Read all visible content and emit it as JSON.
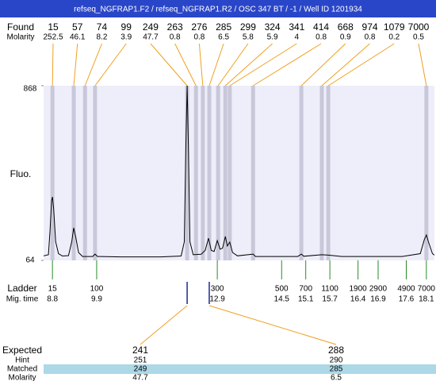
{
  "chart_data": {
    "type": "line",
    "title": "refseq_NGFRAP1.F2 / refseq_NGFRAP1.R2 / OSC 347 BT / -1 / Well ID 1201934",
    "y_label": "Fluo.",
    "ylim": [
      64,
      868
    ],
    "yticks": [
      868,
      64
    ],
    "xlim": [
      8.58,
      18.3
    ],
    "color": "#000000",
    "found": {
      "label": "Found",
      "molarity_label": "Molarity",
      "sizes": [
        15,
        57,
        74,
        99,
        249,
        263,
        276,
        285,
        299,
        324,
        341,
        414,
        668,
        974,
        1079,
        7000
      ],
      "molarities": [
        252.5,
        46.1,
        8.2,
        3.9,
        47.7,
        0.8,
        0.8,
        6.5,
        5.8,
        5.9,
        4,
        0.8,
        0.9,
        0.8,
        0.2,
        0.5
      ],
      "times": [
        8.8,
        9.33,
        9.61,
        9.86,
        12.15,
        12.37,
        12.54,
        12.7,
        12.92,
        13.1,
        13.21,
        13.79,
        14.99,
        15.5,
        15.66,
        18.1
      ]
    },
    "x": [
      8.58,
      8.7,
      8.74,
      8.78,
      8.8,
      8.83,
      8.88,
      8.95,
      9.05,
      9.2,
      9.28,
      9.33,
      9.38,
      9.45,
      9.55,
      9.8,
      9.86,
      9.92,
      10.5,
      11.5,
      12.0,
      12.08,
      12.12,
      12.15,
      12.18,
      12.22,
      12.3,
      12.5,
      12.6,
      12.68,
      12.75,
      12.82,
      12.9,
      12.97,
      13.03,
      13.1,
      13.15,
      13.21,
      13.28,
      13.4,
      13.79,
      13.85,
      14.9,
      14.99,
      15.05,
      15.5,
      15.66,
      16.0,
      17.5,
      17.95,
      18.05,
      18.1,
      18.15,
      18.25,
      18.3
    ],
    "values": [
      85,
      90,
      200,
      340,
      356,
      300,
      150,
      95,
      84,
      86,
      150,
      214,
      170,
      100,
      82,
      82,
      93,
      82,
      80,
      80,
      84,
      150,
      600,
      868,
      600,
      150,
      90,
      92,
      110,
      166,
      110,
      105,
      155,
      115,
      120,
      174,
      130,
      148,
      100,
      85,
      93,
      82,
      82,
      93,
      83,
      90,
      88,
      82,
      82,
      95,
      160,
      181,
      150,
      95,
      88
    ],
    "ladder": {
      "label": "Ladder",
      "time_label": "Mig. time",
      "sizes": [
        15,
        100,
        300,
        500,
        700,
        1100,
        1900,
        2900,
        4900,
        7000
      ],
      "times": [
        8.8,
        9.9,
        12.9,
        14.5,
        15.1,
        15.7,
        16.4,
        16.9,
        17.6,
        18.1
      ]
    },
    "expected": {
      "label": "Expected",
      "hint_label": "Hint",
      "matched_label": "Matched",
      "molarity_label": "Molarity",
      "sizes": [
        241,
        288
      ],
      "hint": [
        251,
        290
      ],
      "matched": [
        249,
        285
      ],
      "molarity": [
        47.7,
        6.5
      ]
    }
  }
}
